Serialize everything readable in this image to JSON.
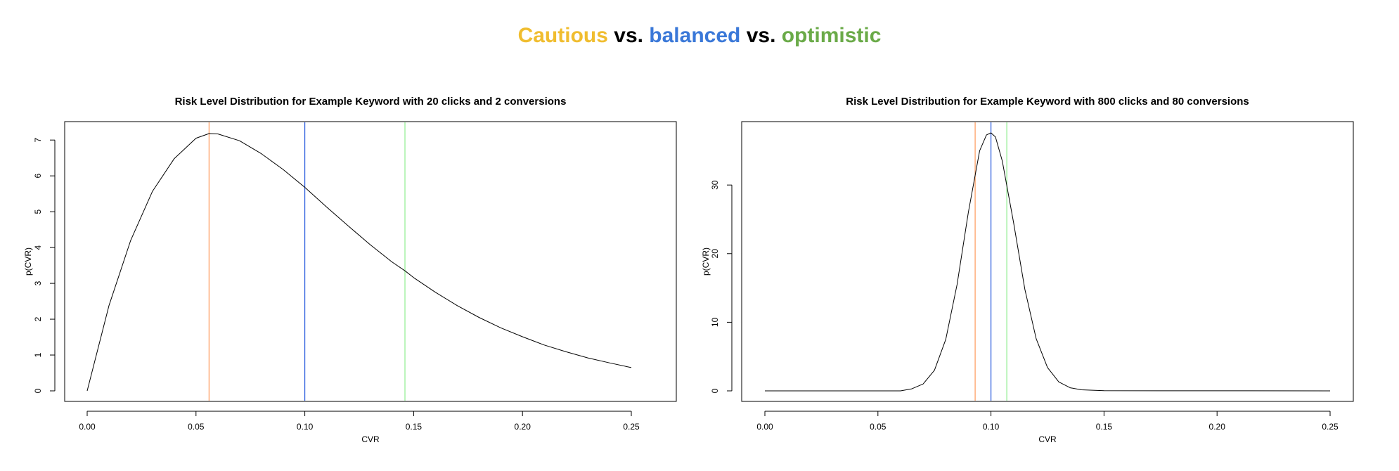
{
  "headline": {
    "parts": [
      {
        "text": "Cautious",
        "color": "#F0BD2F"
      },
      {
        "text": " vs. ",
        "color": "#000000"
      },
      {
        "text": "balanced",
        "color": "#3A78D8"
      },
      {
        "text": " vs. ",
        "color": "#000000"
      },
      {
        "text": "optimistic",
        "color": "#6AAA48"
      }
    ]
  },
  "colors": {
    "cautious_line": "#FF9A5C",
    "balanced_line": "#2255DD",
    "optimistic_line": "#90EE90",
    "curve": "#000000",
    "axis": "#000000"
  },
  "chart_data": [
    {
      "type": "line",
      "title": "Risk Level Distribution for Example Keyword with 20 clicks and 2 conversions",
      "xlabel": "CVR",
      "ylabel": "p(CVR)",
      "xlim": [
        0,
        0.25
      ],
      "ylim": [
        0,
        7.2
      ],
      "xticks": [
        0.0,
        0.05,
        0.1,
        0.15,
        0.2,
        0.25
      ],
      "xtick_labels": [
        "0.00",
        "0.05",
        "0.10",
        "0.15",
        "0.20",
        "0.25"
      ],
      "yticks": [
        0,
        1,
        2,
        3,
        4,
        5,
        6,
        7
      ],
      "ytick_labels": [
        "0",
        "1",
        "2",
        "3",
        "4",
        "5",
        "6",
        "7"
      ],
      "series": [
        {
          "x": [
            0.0,
            0.01,
            0.02,
            0.03,
            0.04,
            0.05,
            0.056,
            0.06,
            0.07,
            0.08,
            0.09,
            0.1,
            0.11,
            0.12,
            0.13,
            0.14,
            0.146,
            0.15,
            0.16,
            0.17,
            0.18,
            0.19,
            0.2,
            0.21,
            0.22,
            0.23,
            0.24,
            0.25
          ],
          "y": [
            0.0,
            2.38,
            4.2,
            5.57,
            6.48,
            7.05,
            7.18,
            7.17,
            6.98,
            6.62,
            6.18,
            5.68,
            5.13,
            4.6,
            4.08,
            3.6,
            3.35,
            3.16,
            2.75,
            2.38,
            2.05,
            1.76,
            1.51,
            1.28,
            1.09,
            0.92,
            0.78,
            0.65
          ]
        }
      ],
      "vlines": [
        {
          "level": "cautious",
          "x": 0.056
        },
        {
          "level": "balanced",
          "x": 0.1
        },
        {
          "level": "optimistic",
          "x": 0.146
        }
      ],
      "grid": false
    },
    {
      "type": "line",
      "title": "Risk Level Distribution for Example Keyword with 800 clicks and 80 conversions",
      "xlabel": "CVR",
      "ylabel": "p(CVR)",
      "xlim": [
        0,
        0.25
      ],
      "ylim": [
        0,
        37.6
      ],
      "xticks": [
        0.0,
        0.05,
        0.1,
        0.15,
        0.2,
        0.25
      ],
      "xtick_labels": [
        "0.00",
        "0.05",
        "0.10",
        "0.15",
        "0.20",
        "0.25"
      ],
      "yticks": [
        0,
        10,
        20,
        30
      ],
      "ytick_labels": [
        "0",
        "10",
        "20",
        "30"
      ],
      "series": [
        {
          "x": [
            0.0,
            0.06,
            0.065,
            0.07,
            0.075,
            0.08,
            0.085,
            0.09,
            0.095,
            0.098,
            0.1,
            0.102,
            0.105,
            0.11,
            0.115,
            0.12,
            0.125,
            0.13,
            0.135,
            0.14,
            0.15,
            0.25
          ],
          "y": [
            0.0,
            0.0,
            0.3,
            1.0,
            3.0,
            7.5,
            15.5,
            26.0,
            35.0,
            37.3,
            37.6,
            37.0,
            33.5,
            24.5,
            14.8,
            7.6,
            3.4,
            1.3,
            0.45,
            0.15,
            0.02,
            0.0
          ]
        }
      ],
      "vlines": [
        {
          "level": "cautious",
          "x": 0.093
        },
        {
          "level": "balanced",
          "x": 0.1
        },
        {
          "level": "optimistic",
          "x": 0.107
        }
      ],
      "grid": false
    }
  ]
}
